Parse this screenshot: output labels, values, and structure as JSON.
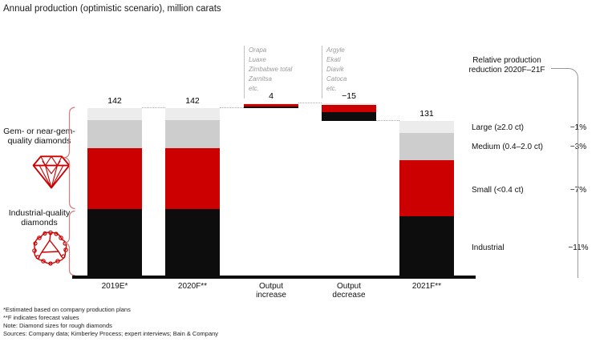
{
  "title": "Annual production (optimistic scenario), million carats",
  "left_panel": {
    "gem_label": "Gem- or near-gem-\nquality diamonds",
    "industrial_label": "Industrial-quality\ndiamonds"
  },
  "right_panel": {
    "header": "Relative production\nreduction 2020F–21F",
    "rows": [
      {
        "label": "Large (≥2.0 ct)",
        "pct": "−1%"
      },
      {
        "label": "Medium (0.4–2.0 ct)",
        "pct": "−3%"
      },
      {
        "label": "Small (<0.4 ct)",
        "pct": "−7%"
      },
      {
        "label": "Industrial",
        "pct": "−11%"
      }
    ]
  },
  "annotations": [
    {
      "bar_index": 2,
      "lines": [
        "Orapa",
        "Luaxe",
        "Zimbabwe total",
        "Zarnitsa",
        "etc."
      ]
    },
    {
      "bar_index": 3,
      "lines": [
        "Argyle",
        "Ekati",
        "Diavik",
        "Catoca",
        "etc."
      ]
    }
  ],
  "footnotes": [
    "*Estimated based on company production plans",
    "**F indicates forecast values",
    "Note: Diamond sizes for rough diamonds",
    "Sources: Company data; Kimberley Process; expert interviews; Bain & Company"
  ],
  "colors": {
    "industrial_black": "#0d0d0d",
    "small_red": "#cc0000",
    "medium_gray": "#cdcdcd",
    "large_light_gray": "#ececec",
    "brace_red": "#d47c7c",
    "line_gray": "#9b9b9b",
    "annotation_gray": "#9a9a9a"
  },
  "chart_data": {
    "type": "bar",
    "subtype": "stacked-waterfall",
    "unit": "million carats",
    "title": "Annual production (optimistic scenario), million carats",
    "categories": [
      "2019E*",
      "2020F**",
      "Output increase",
      "Output decrease",
      "2021F**"
    ],
    "axis_labels": [
      "2019E*",
      "2020F**",
      "Output\nincrease",
      "Output\ndecrease",
      "2021F**"
    ],
    "totals": [
      142,
      142,
      4,
      -15,
      131
    ],
    "total_labels": [
      "142",
      "142",
      "4",
      "−15",
      "131"
    ],
    "segment_names": [
      "Industrial",
      "Small (<0.4 ct)",
      "Medium (0.4–2.0 ct)",
      "Large (≥2.0 ct)"
    ],
    "segment_colors": [
      "#0d0d0d",
      "#cc0000",
      "#cdcdcd",
      "#ececec"
    ],
    "bars": [
      {
        "category": "2019E*",
        "base": 0,
        "segments": [
          57,
          51,
          24,
          10
        ]
      },
      {
        "category": "2020F**",
        "base": 0,
        "segments": [
          57,
          51,
          24,
          10
        ]
      },
      {
        "category": "Output increase",
        "base": 142,
        "segments": [
          1.3,
          2,
          0,
          0.7
        ]
      },
      {
        "category": "Output decrease",
        "base": 131,
        "segments": [
          7.5,
          6,
          0,
          1.5
        ]
      },
      {
        "category": "2021F**",
        "base": 0,
        "segments": [
          51,
          47,
          23,
          10
        ]
      }
    ],
    "connector_levels": [
      142,
      142,
      146,
      131
    ],
    "relative_reduction_2020F_21F": {
      "Large": -1,
      "Medium": -3,
      "Small": -7,
      "Industrial": -11
    },
    "legend_position": "right",
    "grid": false
  }
}
